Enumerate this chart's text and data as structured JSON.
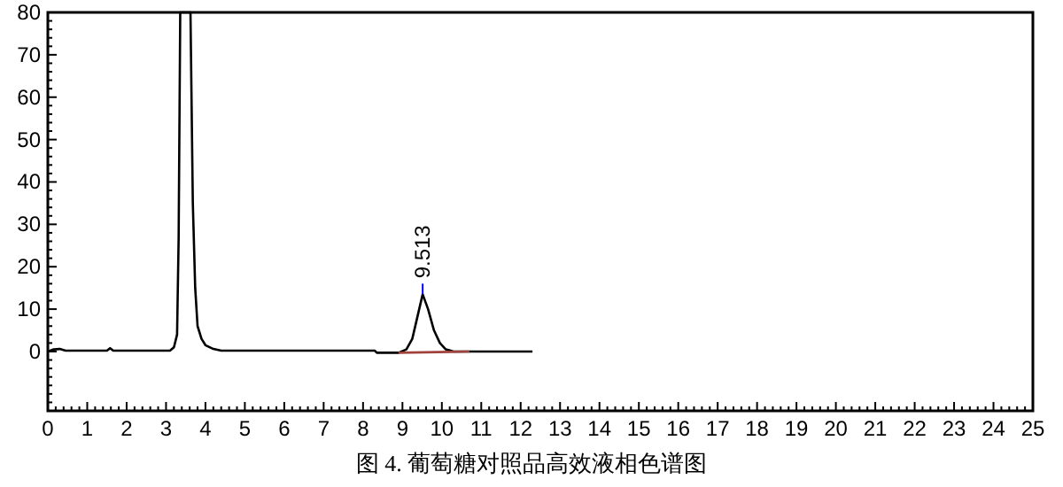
{
  "chart_data": {
    "type": "line",
    "x": [
      0,
      0.15,
      0.3,
      0.45,
      1.5,
      1.58,
      1.66,
      3.1,
      3.2,
      3.28,
      3.32,
      3.36,
      3.62,
      3.68,
      3.74,
      3.8,
      3.9,
      4.0,
      4.2,
      4.4,
      8.3,
      8.35,
      8.9,
      9.1,
      9.25,
      9.4,
      9.513,
      9.65,
      9.8,
      9.95,
      10.1,
      10.3,
      12.3
    ],
    "series": [
      {
        "color": "#000000",
        "values": [
          0,
          0.5,
          0.6,
          0.2,
          0.2,
          0.8,
          0.2,
          0.2,
          1,
          4,
          27,
          80,
          80,
          35,
          15,
          6,
          3,
          1.5,
          0.6,
          0.2,
          0.2,
          -0.3,
          -0.3,
          0.5,
          3,
          9,
          13.5,
          10,
          5,
          2,
          0.5,
          0,
          0
        ]
      },
      {
        "color": "#a0413c",
        "x": [
          8.9,
          10.7
        ],
        "values": [
          -0.3,
          0
        ]
      }
    ],
    "annotations": [
      {
        "text": "9.513",
        "x": 9.513,
        "y": 13.5
      },
      "图 4. 葡萄糖对照品高效液相色谱图"
    ],
    "xlim": [
      0,
      25
    ],
    "xticks": [
      0,
      1,
      2,
      3,
      4,
      5,
      6,
      7,
      8,
      9,
      10,
      11,
      12,
      13,
      14,
      15,
      16,
      17,
      18,
      19,
      20,
      21,
      22,
      23,
      24,
      25
    ],
    "ylim": [
      -14,
      80
    ],
    "yticks": [
      0,
      10,
      20,
      30,
      40,
      50,
      60,
      70,
      80
    ],
    "grid": false,
    "marker": "none",
    "line_style": "solid"
  }
}
